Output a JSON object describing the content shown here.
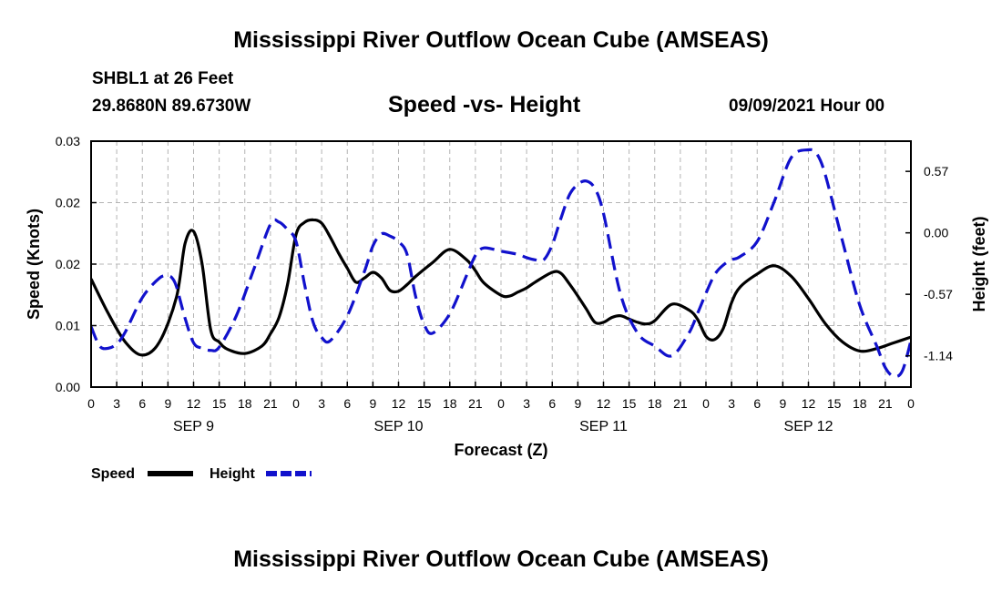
{
  "page": {
    "title_top": "Mississippi River Outflow Ocean Cube (AMSEAS)",
    "title_bottom": "Mississippi River Outflow Ocean Cube (AMSEAS)",
    "station": "SHBL1 at 26 Feet",
    "coords": "29.8680N  89.6730W",
    "subtitle": "Speed -vs- Height",
    "datetime": "09/09/2021 Hour 00"
  },
  "chart_data": {
    "type": "line",
    "xlabel": "Forecast (Z)",
    "ylabel_left": "Speed (Knots)",
    "ylabel_right": "Height (feet)",
    "x_range_hours": [
      0,
      96
    ],
    "x_tick_labels": [
      "0",
      "3",
      "6",
      "9",
      "12",
      "15",
      "18",
      "21",
      "0",
      "3",
      "6",
      "9",
      "12",
      "15",
      "18",
      "21",
      "0",
      "3",
      "6",
      "9",
      "12",
      "15",
      "18",
      "21",
      "0",
      "3",
      "6",
      "9",
      "12",
      "15",
      "18",
      "21",
      "0"
    ],
    "day_labels": [
      {
        "label": "SEP 9",
        "hour": 12
      },
      {
        "label": "SEP 10",
        "hour": 36
      },
      {
        "label": "SEP 11",
        "hour": 60
      },
      {
        "label": "SEP 12",
        "hour": 84
      }
    ],
    "y_left": {
      "range": [
        0,
        0.03
      ],
      "ticks": [
        0,
        0.0075,
        0.015,
        0.0225,
        0.03
      ],
      "tick_labels": [
        "0.00",
        "0.01",
        "0.02",
        "0.02",
        "0.03"
      ]
    },
    "y_right": {
      "range": [
        -1.43,
        0.85
      ],
      "ticks": [
        0.57,
        0.0,
        -0.57,
        -1.14
      ],
      "tick_labels": [
        "0.57",
        "0.00",
        "-0.57",
        "-1.14"
      ]
    },
    "legend": [
      {
        "name": "Speed",
        "color": "#000000",
        "style": "solid"
      },
      {
        "name": "Height",
        "color": "#1111cc",
        "style": "dashed"
      }
    ],
    "series": [
      {
        "name": "Speed",
        "axis": "left",
        "color": "#000000",
        "x": [
          0,
          2,
          4,
          6,
          8,
          10,
          11,
          12,
          13,
          14,
          15,
          16,
          18,
          20,
          21,
          22,
          23,
          24,
          25,
          26,
          27,
          28,
          29,
          30,
          31,
          32,
          33,
          34,
          35,
          36,
          37,
          38,
          40,
          42,
          44,
          45,
          46,
          48,
          49,
          50,
          51,
          52,
          54,
          55,
          56,
          57,
          58,
          59,
          60,
          61,
          62,
          63,
          64,
          65,
          66,
          68,
          70,
          71,
          72,
          73,
          74,
          75,
          76,
          78,
          80,
          82,
          84,
          86,
          88,
          90,
          92,
          94,
          96
        ],
        "y": [
          0.0132,
          0.009,
          0.0055,
          0.0039,
          0.0055,
          0.011,
          0.0175,
          0.019,
          0.015,
          0.007,
          0.0055,
          0.0046,
          0.0041,
          0.005,
          0.0065,
          0.0085,
          0.0125,
          0.0186,
          0.0201,
          0.0204,
          0.02,
          0.0183,
          0.0163,
          0.0145,
          0.0128,
          0.0133,
          0.014,
          0.0133,
          0.0118,
          0.0117,
          0.0125,
          0.0135,
          0.0152,
          0.0168,
          0.0155,
          0.0142,
          0.0127,
          0.0112,
          0.0111,
          0.0116,
          0.0121,
          0.0128,
          0.014,
          0.0139,
          0.0126,
          0.0111,
          0.0095,
          0.0079,
          0.0079,
          0.0085,
          0.0087,
          0.0083,
          0.0079,
          0.0077,
          0.0081,
          0.0101,
          0.0094,
          0.0083,
          0.0062,
          0.0058,
          0.0071,
          0.0103,
          0.0122,
          0.0138,
          0.0148,
          0.0135,
          0.0108,
          0.0077,
          0.0055,
          0.0044,
          0.0047,
          0.0054,
          0.0061
        ]
      },
      {
        "name": "Height",
        "axis": "right",
        "color": "#1111cc",
        "x": [
          0,
          1,
          2,
          3,
          4,
          6,
          8,
          9,
          9.5,
          10,
          11,
          12,
          13,
          14,
          15,
          17,
          19,
          21,
          22,
          23,
          24,
          25,
          26,
          27,
          28,
          30,
          32,
          33,
          34,
          35,
          36,
          37,
          38,
          39,
          40,
          42,
          44,
          45,
          46,
          48,
          50,
          51,
          52,
          53,
          54,
          55,
          56,
          57,
          58,
          59,
          60,
          62,
          64,
          66,
          68,
          70,
          71,
          72,
          73,
          74,
          75,
          76,
          78,
          80,
          82,
          84,
          85,
          86,
          88,
          90,
          92,
          93,
          94,
          95,
          96
        ],
        "y": [
          -0.87,
          -1.05,
          -1.07,
          -1.03,
          -0.92,
          -0.6,
          -0.42,
          -0.4,
          -0.42,
          -0.5,
          -0.79,
          -1.02,
          -1.07,
          -1.09,
          -1.06,
          -0.77,
          -0.35,
          0.08,
          0.1,
          0.03,
          -0.08,
          -0.48,
          -0.83,
          -0.97,
          -1.0,
          -0.77,
          -0.36,
          -0.12,
          -0.01,
          -0.03,
          -0.08,
          -0.2,
          -0.59,
          -0.85,
          -0.93,
          -0.75,
          -0.39,
          -0.21,
          -0.14,
          -0.17,
          -0.2,
          -0.23,
          -0.25,
          -0.25,
          -0.11,
          0.13,
          0.35,
          0.45,
          0.48,
          0.41,
          0.18,
          -0.57,
          -0.93,
          -1.05,
          -1.14,
          -0.93,
          -0.75,
          -0.56,
          -0.39,
          -0.3,
          -0.25,
          -0.22,
          -0.08,
          0.29,
          0.7,
          0.77,
          0.73,
          0.53,
          -0.08,
          -0.67,
          -1.05,
          -1.25,
          -1.33,
          -1.28,
          -1.0
        ]
      }
    ]
  }
}
